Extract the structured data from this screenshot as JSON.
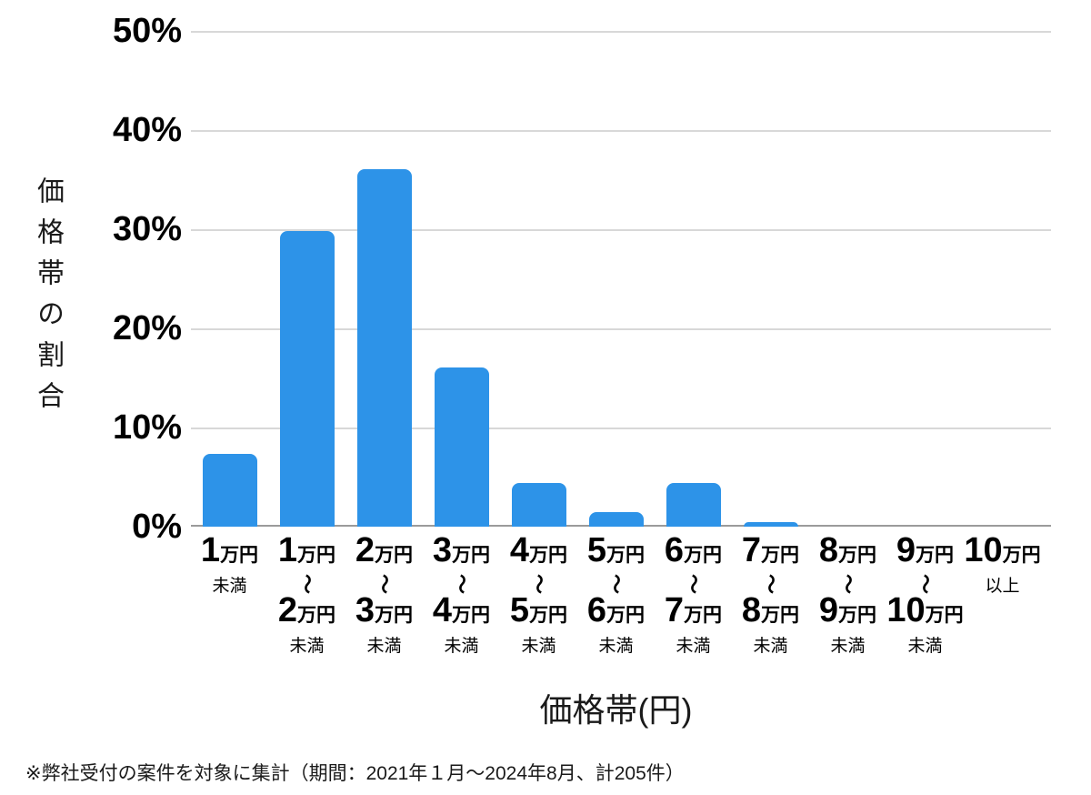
{
  "chart_data": {
    "type": "bar",
    "title": "",
    "xlabel": "価格帯(円)",
    "ylabel": "価格帯の割合",
    "ylim": [
      0,
      50
    ],
    "grid": "horizontal",
    "legend": "none",
    "bar_color": "#2d93e8",
    "gridline_color": "#d8d8d8",
    "baseline_color": "#9b9b9b",
    "yticks": [
      {
        "value": 0,
        "label": "0%"
      },
      {
        "value": 10,
        "label": "10%"
      },
      {
        "value": 20,
        "label": "20%"
      },
      {
        "value": 30,
        "label": "30%"
      },
      {
        "value": 40,
        "label": "40%"
      },
      {
        "value": 50,
        "label": "50%"
      }
    ],
    "categories": [
      {
        "top_num": "1",
        "top_unit": "万円",
        "tilde": "",
        "bottom_num": "",
        "bottom_unit": "",
        "suffix": "未満"
      },
      {
        "top_num": "1",
        "top_unit": "万円",
        "tilde": "〜",
        "bottom_num": "2",
        "bottom_unit": "万円",
        "suffix": "未満"
      },
      {
        "top_num": "2",
        "top_unit": "万円",
        "tilde": "〜",
        "bottom_num": "3",
        "bottom_unit": "万円",
        "suffix": "未満"
      },
      {
        "top_num": "3",
        "top_unit": "万円",
        "tilde": "〜",
        "bottom_num": "4",
        "bottom_unit": "万円",
        "suffix": "未満"
      },
      {
        "top_num": "4",
        "top_unit": "万円",
        "tilde": "〜",
        "bottom_num": "5",
        "bottom_unit": "万円",
        "suffix": "未満"
      },
      {
        "top_num": "5",
        "top_unit": "万円",
        "tilde": "〜",
        "bottom_num": "6",
        "bottom_unit": "万円",
        "suffix": "未満"
      },
      {
        "top_num": "6",
        "top_unit": "万円",
        "tilde": "〜",
        "bottom_num": "7",
        "bottom_unit": "万円",
        "suffix": "未満"
      },
      {
        "top_num": "7",
        "top_unit": "万円",
        "tilde": "〜",
        "bottom_num": "8",
        "bottom_unit": "万円",
        "suffix": "未満"
      },
      {
        "top_num": "8",
        "top_unit": "万円",
        "tilde": "〜",
        "bottom_num": "9",
        "bottom_unit": "万円",
        "suffix": "未満"
      },
      {
        "top_num": "9",
        "top_unit": "万円",
        "tilde": "〜",
        "bottom_num": "10",
        "bottom_unit": "万円",
        "suffix": "未満"
      },
      {
        "top_num": "10",
        "top_unit": "万円",
        "tilde": "",
        "bottom_num": "",
        "bottom_unit": "",
        "suffix": "以上"
      }
    ],
    "values": [
      7.3,
      29.8,
      36.1,
      16.1,
      4.4,
      1.5,
      4.4,
      0.5,
      0,
      0,
      0
    ]
  },
  "footnote": "※弊社受付の案件を対象に集計（期間：2021年１月～2024年8月、計205件）"
}
